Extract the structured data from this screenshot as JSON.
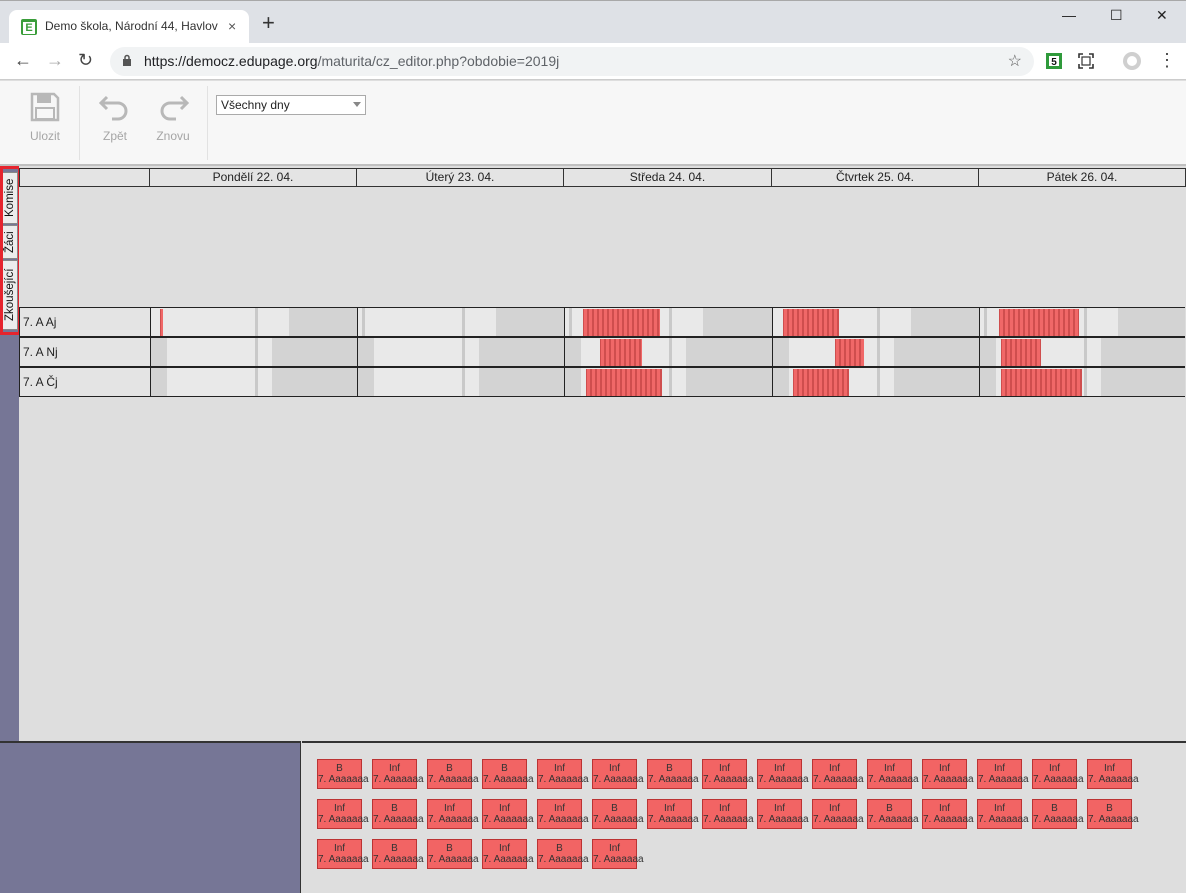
{
  "browser": {
    "tab_title": "Demo škola, Národní 44, Havlov",
    "tab_close": "×",
    "new_tab": "+",
    "url_host": "https://democz.edupage.org",
    "url_path": "/maturita/cz_editor.php?obdobie=2019j",
    "window_controls": {
      "minimize": "—",
      "maximize": "☐",
      "close": "✕"
    },
    "nav": {
      "back": "←",
      "forward": "→",
      "reload": "↻",
      "menu": "⋮"
    },
    "bookmark": "☆",
    "extension_badge": "5"
  },
  "toolbar": {
    "save_label": "Ulozit",
    "undo_label": "Zpět",
    "redo_label": "Znovu",
    "day_filter_value": "Všechny dny"
  },
  "side_tabs": {
    "committees": "Komise",
    "students": "Žáci",
    "examiners": "Zkoušející"
  },
  "days": [
    {
      "label": "Pondělí 22. 04."
    },
    {
      "label": "Úterý 23. 04."
    },
    {
      "label": "Středa 24. 04."
    },
    {
      "label": "Čtvrtek 25. 04."
    },
    {
      "label": "Pátek 26. 04."
    }
  ],
  "rows": [
    {
      "label": "7. A Aj"
    },
    {
      "label": "7. A Nj"
    },
    {
      "label": "7. A Čj"
    }
  ],
  "cards": [
    [
      "B",
      "Inf",
      "B",
      "B",
      "Inf",
      "Inf",
      "B",
      "Inf",
      "Inf",
      "Inf",
      "Inf",
      "Inf",
      "Inf",
      "Inf",
      "Inf"
    ],
    [
      "Inf",
      "B",
      "Inf",
      "Inf",
      "Inf",
      "B",
      "Inf",
      "Inf",
      "Inf",
      "Inf",
      "B",
      "Inf",
      "Inf",
      "B",
      "B"
    ],
    [
      "Inf",
      "B",
      "B",
      "Inf",
      "B",
      "Inf"
    ]
  ],
  "card_sublabel": "7. Aaaaaaa",
  "colors": {
    "exam_block": "#f06868",
    "side_panel": "#767696",
    "highlight": "#e5242e"
  }
}
